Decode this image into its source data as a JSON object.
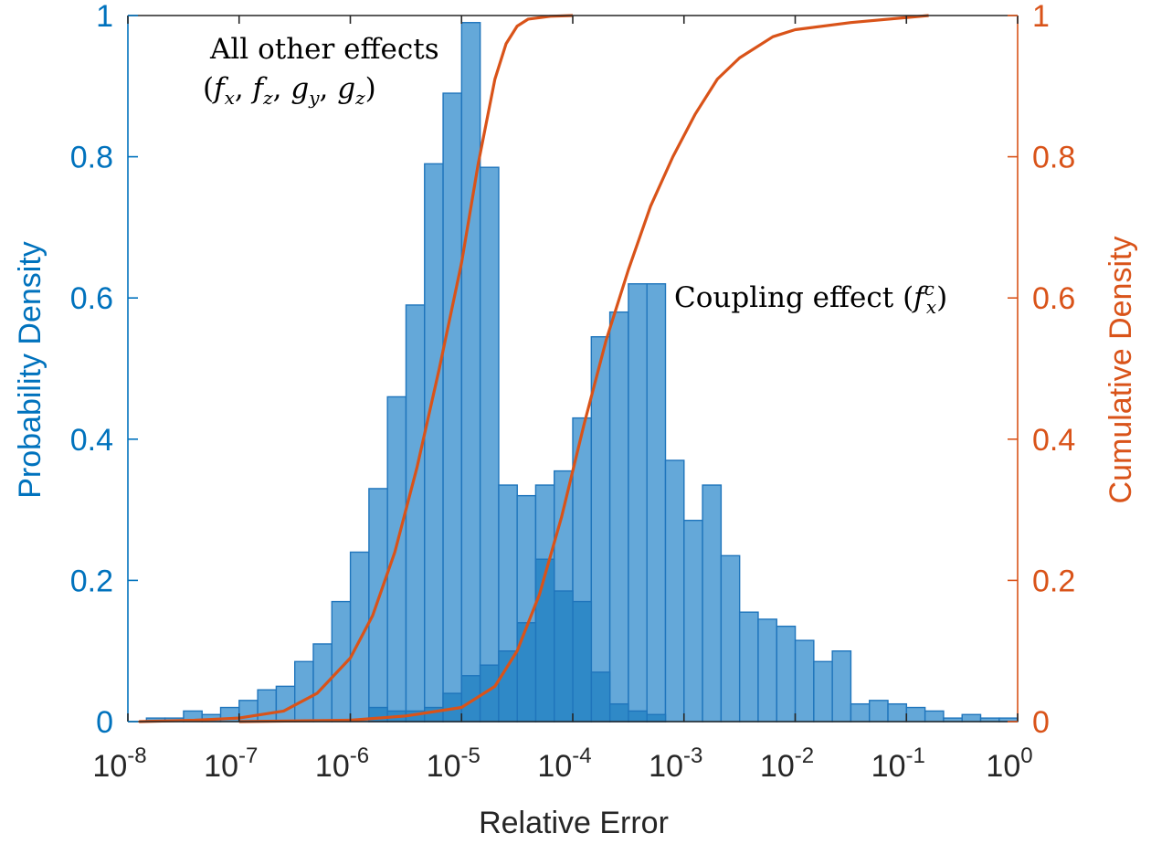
{
  "chart_data": {
    "type": "bar",
    "xscale": "log",
    "xlim": [
      1e-08,
      1
    ],
    "xlabel": "Relative Error",
    "ylabel_left": "Probability Density",
    "ylabel_right": "Cumulative Density",
    "ylim_left": [
      0,
      1
    ],
    "ylim_right": [
      0,
      1
    ],
    "x_ticks": [
      {
        "value": 1e-08,
        "base": "10",
        "exp": "-8"
      },
      {
        "value": 1e-07,
        "base": "10",
        "exp": "-7"
      },
      {
        "value": 1e-06,
        "base": "10",
        "exp": "-6"
      },
      {
        "value": 1e-05,
        "base": "10",
        "exp": "-5"
      },
      {
        "value": 0.0001,
        "base": "10",
        "exp": "-4"
      },
      {
        "value": 0.001,
        "base": "10",
        "exp": "-3"
      },
      {
        "value": 0.01,
        "base": "10",
        "exp": "-2"
      },
      {
        "value": 0.1,
        "base": "10",
        "exp": "-1"
      },
      {
        "value": 1,
        "base": "10",
        "exp": "0"
      }
    ],
    "y_ticks_left": [
      "0",
      "0.2",
      "0.4",
      "0.6",
      "0.8",
      "1"
    ],
    "y_ticks_right": [
      "0",
      "0.2",
      "0.4",
      "0.6",
      "0.8",
      "1"
    ],
    "colors": {
      "histogram_fill": "#64a8d9",
      "overlap_fill": "#2f89c7",
      "histogram_edge": "#1f75bc",
      "cdf_line": "#d95319",
      "left_axis": "#0072bd",
      "right_axis": "#d95319",
      "text": "#262626"
    },
    "bin_width_log10": 0.1667,
    "series": [
      {
        "kind": "histogram",
        "start_log10": -7.833,
        "values": [
          0.005,
          0.005,
          0.015,
          0.01,
          0.02,
          0.03,
          0.045,
          0.05,
          0.085,
          0.11,
          0.17,
          0.24,
          0.33,
          0.46,
          0.59,
          0.79,
          0.89,
          0.99,
          0.785,
          0.335
        ]
      },
      {
        "kind": "histogram",
        "start_log10": -4.5,
        "values": [
          0.32,
          0.335,
          0.355,
          0.43,
          0.545,
          0.58,
          0.62,
          0.62,
          0.37,
          0.285,
          0.335,
          0.235,
          0.155,
          0.145,
          0.135,
          0.115,
          0.085,
          0.1,
          0.025,
          0.03,
          0.025,
          0.02,
          0.015,
          0.005,
          0.01,
          0.005,
          0.005
        ]
      },
      {
        "kind": "histogram",
        "start_log10": -5.833,
        "values": [
          0.02,
          0.015,
          0.015,
          0.02,
          0.04,
          0.065,
          0.08,
          0.1,
          0.14,
          0.23,
          0.185,
          0.17,
          0.07,
          0.025,
          0.015,
          0.01
        ]
      },
      {
        "kind": "cdf",
        "x_log10": [
          -7.9,
          -7.4,
          -7.0,
          -6.6,
          -6.3,
          -6.0,
          -5.8,
          -5.6,
          -5.4,
          -5.2,
          -5.0,
          -4.85,
          -4.7,
          -4.6,
          -4.5,
          -4.4,
          -4.2,
          -4.0
        ],
        "y": [
          0.0,
          0.002,
          0.005,
          0.015,
          0.04,
          0.09,
          0.15,
          0.24,
          0.36,
          0.5,
          0.65,
          0.79,
          0.91,
          0.96,
          0.985,
          0.995,
          0.999,
          1.0
        ]
      },
      {
        "kind": "cdf",
        "x_log10": [
          -7.0,
          -6.0,
          -5.5,
          -5.0,
          -4.7,
          -4.5,
          -4.3,
          -4.1,
          -3.9,
          -3.7,
          -3.5,
          -3.3,
          -3.1,
          -2.9,
          -2.7,
          -2.5,
          -2.2,
          -2.0,
          -1.5,
          -0.8
        ],
        "y": [
          0.0,
          0.002,
          0.008,
          0.02,
          0.05,
          0.1,
          0.18,
          0.29,
          0.42,
          0.54,
          0.64,
          0.73,
          0.8,
          0.86,
          0.91,
          0.94,
          0.97,
          0.98,
          0.99,
          1.0
        ]
      }
    ],
    "annotations": {
      "label_a_line1": "All other effects",
      "label_a_line2": "(fx, fz, gy, gz)",
      "label_b": "Coupling effect (fcx)"
    }
  }
}
